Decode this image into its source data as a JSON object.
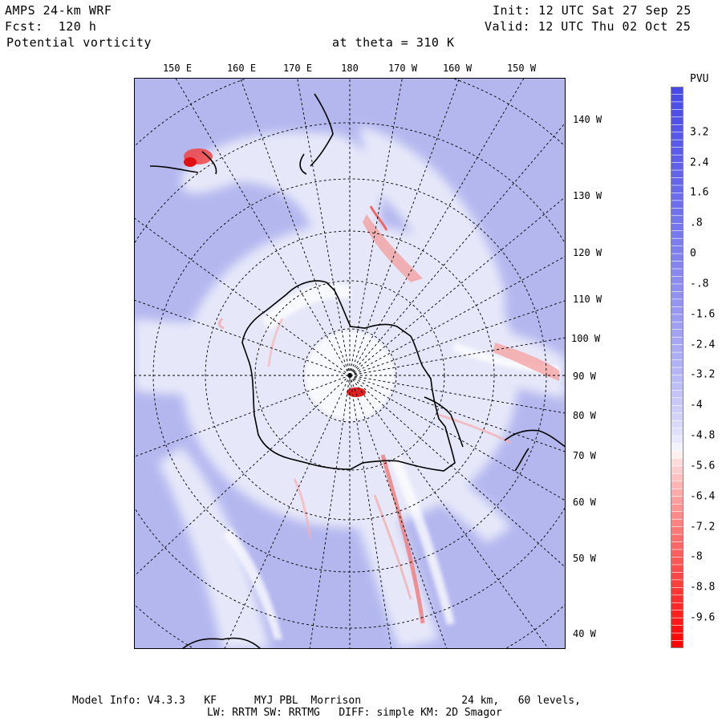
{
  "header": {
    "model_name": "AMPS 24-km WRF",
    "forecast": "Fcst:  120 h",
    "field": "Potential vorticity",
    "level": "at theta = 310 K",
    "init": "Init: 12 UTC Sat 27 Sep 25",
    "valid": "Valid: 12 UTC Thu 02 Oct 25"
  },
  "map": {
    "projection": "south polar stereographic",
    "longitude_labels": [
      "150 E",
      "160 E",
      "170 E",
      "180",
      "170 W",
      "160 W",
      "150 W"
    ],
    "latitude_labels": [
      "140 W",
      "130 W",
      "120 W",
      "110 W",
      "100 W",
      "90 W",
      "80 W",
      "70 W",
      "60 W",
      "50 W",
      "40 W"
    ],
    "colors": {
      "background_field": "#b4b7ee",
      "zero_band": "#e8e8f8",
      "negative_max": "#ff0000",
      "positive_max": "#4444ee",
      "coastline": "#000000",
      "grid": "#000000"
    }
  },
  "colorbar": {
    "title": "PVU",
    "tick_labels": [
      "3.2",
      "2.4",
      "1.6",
      ".8",
      "0",
      "-.8",
      "-1.6",
      "-2.4",
      "-3.2",
      "-4",
      "-4.8",
      "-5.6",
      "-6.4",
      "-7.2",
      "-8",
      "-8.8",
      "-9.6"
    ],
    "range": [
      -10.4,
      4.4
    ],
    "color_positive": "#4848e8",
    "color_neutral": "#ffffff",
    "color_negative": "#ff0000"
  },
  "footer": {
    "line1": "Model Info: V4.3.3   KF      MYJ PBL  Morrison                24 km,   60 levels,",
    "line2": "LW: RRTM SW: RRTMG   DIFF: simple KM: 2D Smagor"
  }
}
